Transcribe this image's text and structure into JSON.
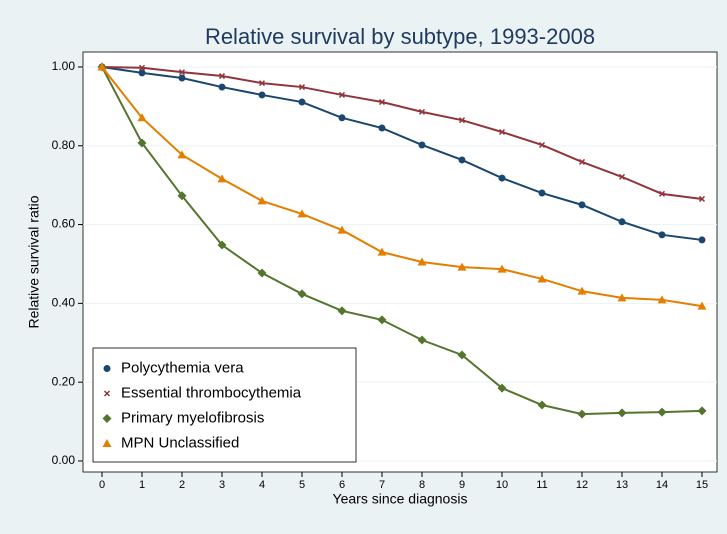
{
  "chart_data": {
    "type": "line",
    "title": "Relative survival by subtype, 1993-2008",
    "x_label": "Years since diagnosis",
    "y_label": "Relative survival ratio",
    "x": [
      0,
      1,
      2,
      3,
      4,
      5,
      6,
      7,
      8,
      9,
      10,
      11,
      12,
      13,
      14,
      15
    ],
    "xlim": [
      -0.475,
      15.375
    ],
    "xticks": [
      0,
      1,
      2,
      3,
      4,
      5,
      6,
      7,
      8,
      9,
      10,
      11,
      12,
      13,
      14,
      15
    ],
    "ylim": [
      -0.028,
      1.038
    ],
    "yticks": [
      {
        "value": 0,
        "label": "0.00"
      },
      {
        "value": 0.2,
        "label": "0.20"
      },
      {
        "value": 0.4,
        "label": "0.40"
      },
      {
        "value": 0.6,
        "label": "0.60"
      },
      {
        "value": 0.8,
        "label": "0.80"
      },
      {
        "value": 1,
        "label": "1.00"
      }
    ],
    "grid": true,
    "legend": "bottom-left",
    "series": [
      {
        "name": "Polycythemia vera",
        "color": "#1a476f",
        "marker": "circle",
        "values": [
          1.0,
          0.985,
          0.972,
          0.949,
          0.929,
          0.911,
          0.871,
          0.845,
          0.802,
          0.764,
          0.718,
          0.68,
          0.65,
          0.607,
          0.574,
          0.561
        ]
      },
      {
        "name": "Essential thrombocythemia",
        "color": "#90353b",
        "marker": "x",
        "values": [
          1.0,
          0.998,
          0.987,
          0.977,
          0.959,
          0.949,
          0.929,
          0.911,
          0.886,
          0.865,
          0.835,
          0.802,
          0.759,
          0.721,
          0.678,
          0.665
        ]
      },
      {
        "name": "Primary myelofibrosis",
        "color": "#55752f",
        "marker": "diamond",
        "values": [
          1.0,
          0.807,
          0.673,
          0.548,
          0.477,
          0.424,
          0.381,
          0.358,
          0.307,
          0.269,
          0.185,
          0.142,
          0.119,
          0.122,
          0.124,
          0.127
        ]
      },
      {
        "name": "MPN Unclassified",
        "color": "#e37e00",
        "marker": "triangle",
        "values": [
          1.0,
          0.871,
          0.777,
          0.716,
          0.66,
          0.627,
          0.586,
          0.53,
          0.505,
          0.492,
          0.487,
          0.462,
          0.431,
          0.414,
          0.409,
          0.393
        ]
      }
    ]
  }
}
